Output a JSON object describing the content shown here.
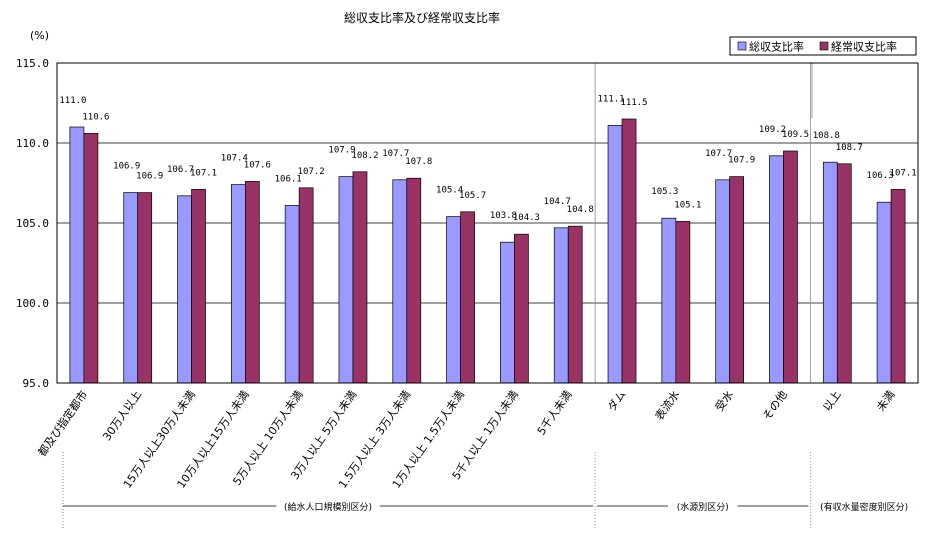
{
  "chart_data": {
    "type": "bar",
    "title": "総収支比率及び経常収支比率",
    "ylabel": "(%)",
    "xlabel": "",
    "ylim": [
      95.0,
      115.0
    ],
    "yticks": [
      "95.0",
      "100.0",
      "105.0",
      "110.0",
      "115.0"
    ],
    "grid": true,
    "legend_position": "top-right",
    "categories": [
      "都及び指定都市",
      "30万人以上",
      "15万人以上30万人未満",
      "10万人以上15万人未満",
      "5万人以上 10万人未満",
      "3万人以上 5万人未満",
      "1.5万人以上 3万人未満",
      "1万人以上 1.5万人未満",
      "5千人以上 1万人未満",
      "5千人未満",
      "ダム",
      "表流水",
      "受水",
      "その他",
      "以上",
      "未満"
    ],
    "series": [
      {
        "name": "総収支比率",
        "color": "#9999ff",
        "values": [
          111.0,
          106.9,
          106.7,
          107.4,
          106.1,
          107.9,
          107.7,
          105.4,
          103.8,
          104.7,
          111.1,
          105.3,
          107.7,
          109.2,
          108.8,
          106.3
        ]
      },
      {
        "name": "経常収支比率",
        "color": "#993366",
        "values": [
          110.6,
          106.9,
          107.1,
          107.6,
          107.2,
          108.2,
          107.8,
          105.7,
          104.3,
          104.8,
          111.5,
          105.1,
          107.9,
          109.5,
          108.7,
          107.1
        ]
      }
    ],
    "data_labels": [
      [
        "111.0",
        "106.9",
        "106.7",
        "107.4",
        "106.1",
        "107.9",
        "107.7",
        "105.4",
        "103.8",
        "104.7",
        "111.1",
        "105.3",
        "107.7",
        "109.2",
        "108.8",
        "106.3"
      ],
      [
        "110.6",
        "106.9",
        "107.1",
        "107.6",
        "107.2",
        "108.2",
        "107.8",
        "105.7",
        "104.3",
        "104.8",
        "111.5",
        "105.1",
        "107.9",
        "109.5",
        "108.7",
        "107.1"
      ]
    ],
    "groups": [
      {
        "label": "(給水人口規模別区分)",
        "count": 10
      },
      {
        "label": "(水源別区分)",
        "count": 4
      },
      {
        "label": "(有収水量密度別区分)",
        "count": 2
      }
    ]
  }
}
